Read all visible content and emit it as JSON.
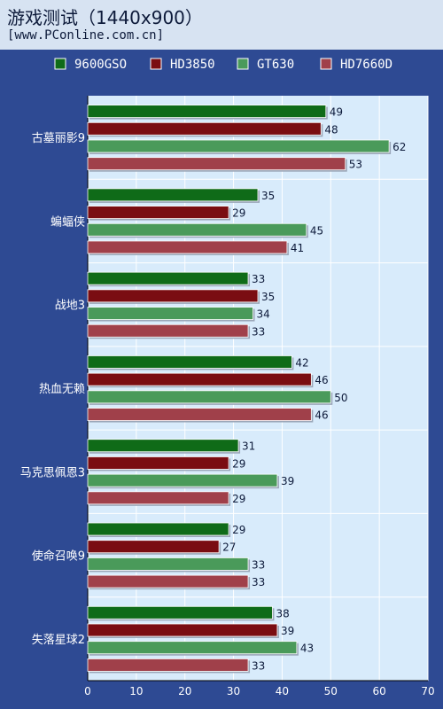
{
  "header": {
    "title": "游戏测试（1440x900）",
    "subtitle": "[www.PConline.com.cn]"
  },
  "chart_data": {
    "type": "bar",
    "orientation": "horizontal",
    "categories": [
      "古墓丽影9",
      "蝙蝠侠",
      "战地3",
      "热血无赖",
      "马克思佩恩3",
      "使命召唤9",
      "失落星球2"
    ],
    "series": [
      {
        "name": "9600GSO",
        "color": "#0f6b18",
        "values": [
          49,
          35,
          33,
          42,
          31,
          29,
          38
        ]
      },
      {
        "name": "HD3850",
        "color": "#7a0d12",
        "values": [
          48,
          29,
          35,
          46,
          29,
          27,
          39
        ]
      },
      {
        "name": "GT630",
        "color": "#4a9a5a",
        "values": [
          62,
          45,
          34,
          50,
          39,
          33,
          43
        ]
      },
      {
        "name": "HD7660D",
        "color": "#a0404a",
        "values": [
          53,
          41,
          33,
          46,
          29,
          33,
          33
        ]
      }
    ],
    "xlim": [
      0,
      70
    ],
    "xticks": [
      0,
      10,
      20,
      30,
      40,
      50,
      60,
      70
    ],
    "legend_position": "top",
    "grid": true
  }
}
